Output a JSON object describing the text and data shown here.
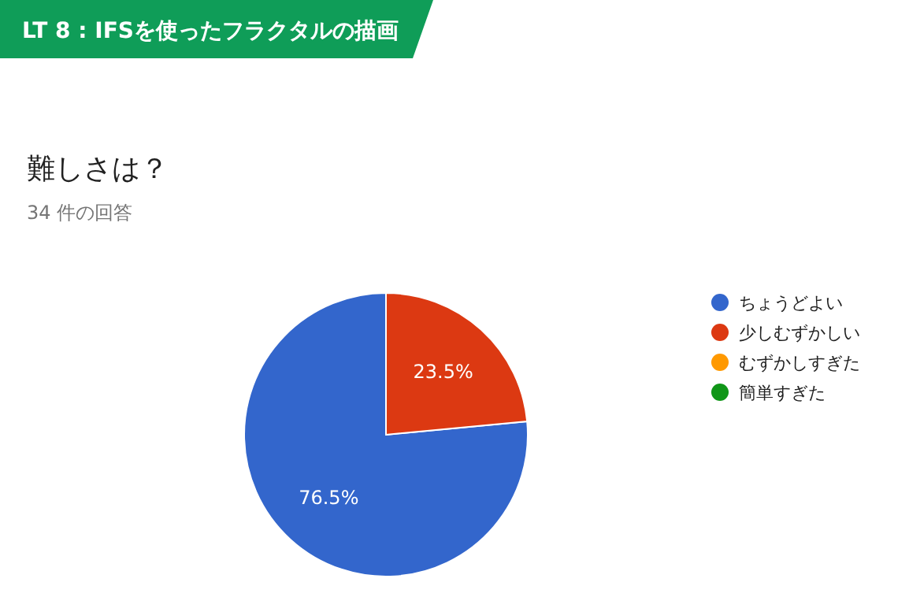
{
  "chart_data": {
    "type": "pie",
    "title": "難しさは？",
    "subtitle": "34 件の回答",
    "annotations": [
      "LT 8 : IFSを使ったフラクタルの描画"
    ],
    "categories": [
      "ちょうどよい",
      "少しむずかしい",
      "むずかしすぎた",
      "簡単すぎた"
    ],
    "values": [
      76.5,
      23.5,
      0,
      0
    ],
    "colors": [
      "#3366cc",
      "#dc3912",
      "#ff9900",
      "#109618"
    ],
    "value_labels": [
      "76.5%",
      "23.5%",
      null,
      null
    ],
    "legend": "right"
  }
}
